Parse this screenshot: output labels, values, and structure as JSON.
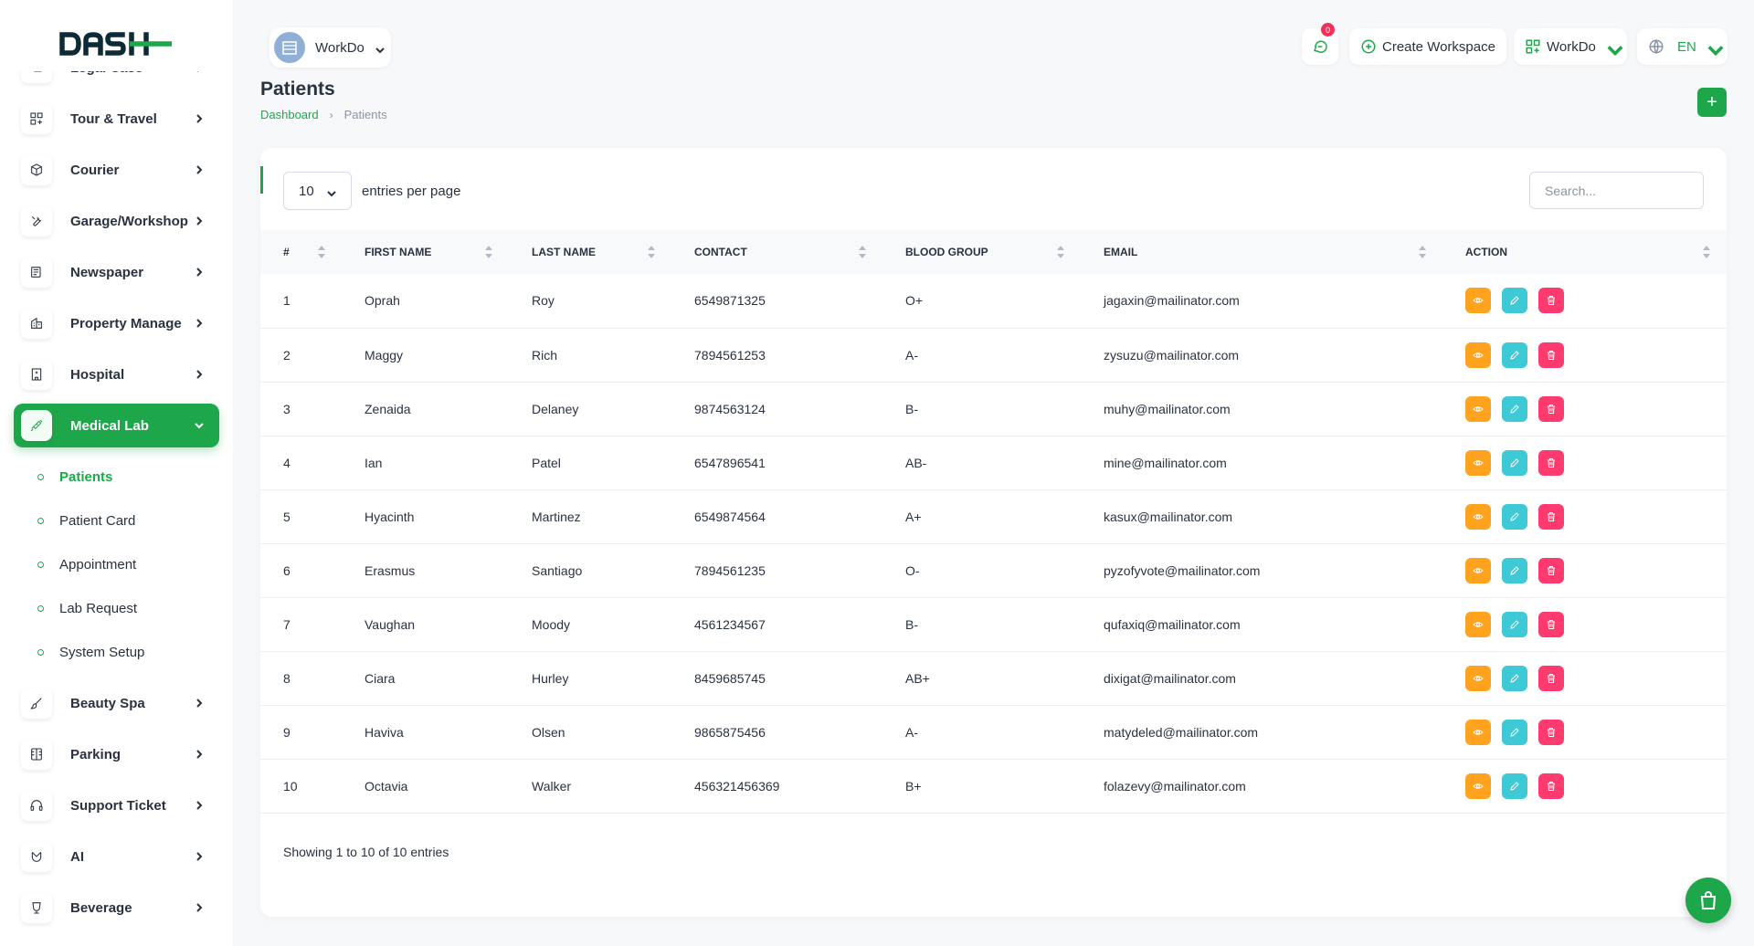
{
  "brand": {
    "logo_text": "DASH",
    "accent_color": "#1ea74a"
  },
  "header": {
    "workspace_label": "WorkDo",
    "notification_count": "0",
    "create_workspace_label": "Create Workspace",
    "workdo_menu_label": "WorkDo",
    "language_label": "EN"
  },
  "sidebar": {
    "items": [
      {
        "label": "Legal Case",
        "icon": "list-icon"
      },
      {
        "label": "Tour & Travel",
        "icon": "grid-icon"
      },
      {
        "label": "Courier",
        "icon": "box-icon"
      },
      {
        "label": "Garage/Workshop",
        "icon": "wrench-icon"
      },
      {
        "label": "Newspaper",
        "icon": "newspaper-icon"
      },
      {
        "label": "Property Manage",
        "icon": "building-icon"
      },
      {
        "label": "Hospital",
        "icon": "hospital-icon"
      },
      {
        "label": "Medical Lab",
        "icon": "syringe-icon"
      }
    ],
    "submenu": [
      {
        "label": "Patients"
      },
      {
        "label": "Patient Card"
      },
      {
        "label": "Appointment"
      },
      {
        "label": "Lab Request"
      },
      {
        "label": "System Setup"
      }
    ],
    "items_after": [
      {
        "label": "Beauty Spa",
        "icon": "brush-icon"
      },
      {
        "label": "Parking",
        "icon": "parking-icon"
      },
      {
        "label": "Support Ticket",
        "icon": "headset-icon"
      },
      {
        "label": "AI",
        "icon": "ai-icon"
      },
      {
        "label": "Beverage",
        "icon": "cup-icon"
      }
    ]
  },
  "page": {
    "title": "Patients",
    "breadcrumb_home": "Dashboard",
    "breadcrumb_current": "Patients",
    "add_label": "+"
  },
  "table_controls": {
    "per_page_value": "10",
    "per_page_label": "entries per page",
    "search_placeholder": "Search..."
  },
  "table": {
    "columns": [
      "#",
      "First Name",
      "Last Name",
      "Contact",
      "Blood Group",
      "Email",
      "Action"
    ],
    "rows": [
      [
        "1",
        "Oprah",
        "Roy",
        "6549871325",
        "O+",
        "jagaxin@mailinator.com"
      ],
      [
        "2",
        "Maggy",
        "Rich",
        "7894561253",
        "A-",
        "zysuzu@mailinator.com"
      ],
      [
        "3",
        "Zenaida",
        "Delaney",
        "9874563124",
        "B-",
        "muhy@mailinator.com"
      ],
      [
        "4",
        "Ian",
        "Patel",
        "6547896541",
        "AB-",
        "mine@mailinator.com"
      ],
      [
        "5",
        "Hyacinth",
        "Martinez",
        "6549874564",
        "A+",
        "kasux@mailinator.com"
      ],
      [
        "6",
        "Erasmus",
        "Santiago",
        "7894561235",
        "O-",
        "pyzofyvote@mailinator.com"
      ],
      [
        "7",
        "Vaughan",
        "Moody",
        "4561234567",
        "B-",
        "qufaxiq@mailinator.com"
      ],
      [
        "8",
        "Ciara",
        "Hurley",
        "8459685745",
        "AB+",
        "dixigat@mailinator.com"
      ],
      [
        "9",
        "Haviva",
        "Olsen",
        "9865875456",
        "A-",
        "matydeled@mailinator.com"
      ],
      [
        "10",
        "Octavia",
        "Walker",
        "456321456369",
        "B+",
        "folazevy@mailinator.com"
      ]
    ]
  },
  "footer": {
    "info": "Showing 1 to 10 of 10 entries"
  }
}
